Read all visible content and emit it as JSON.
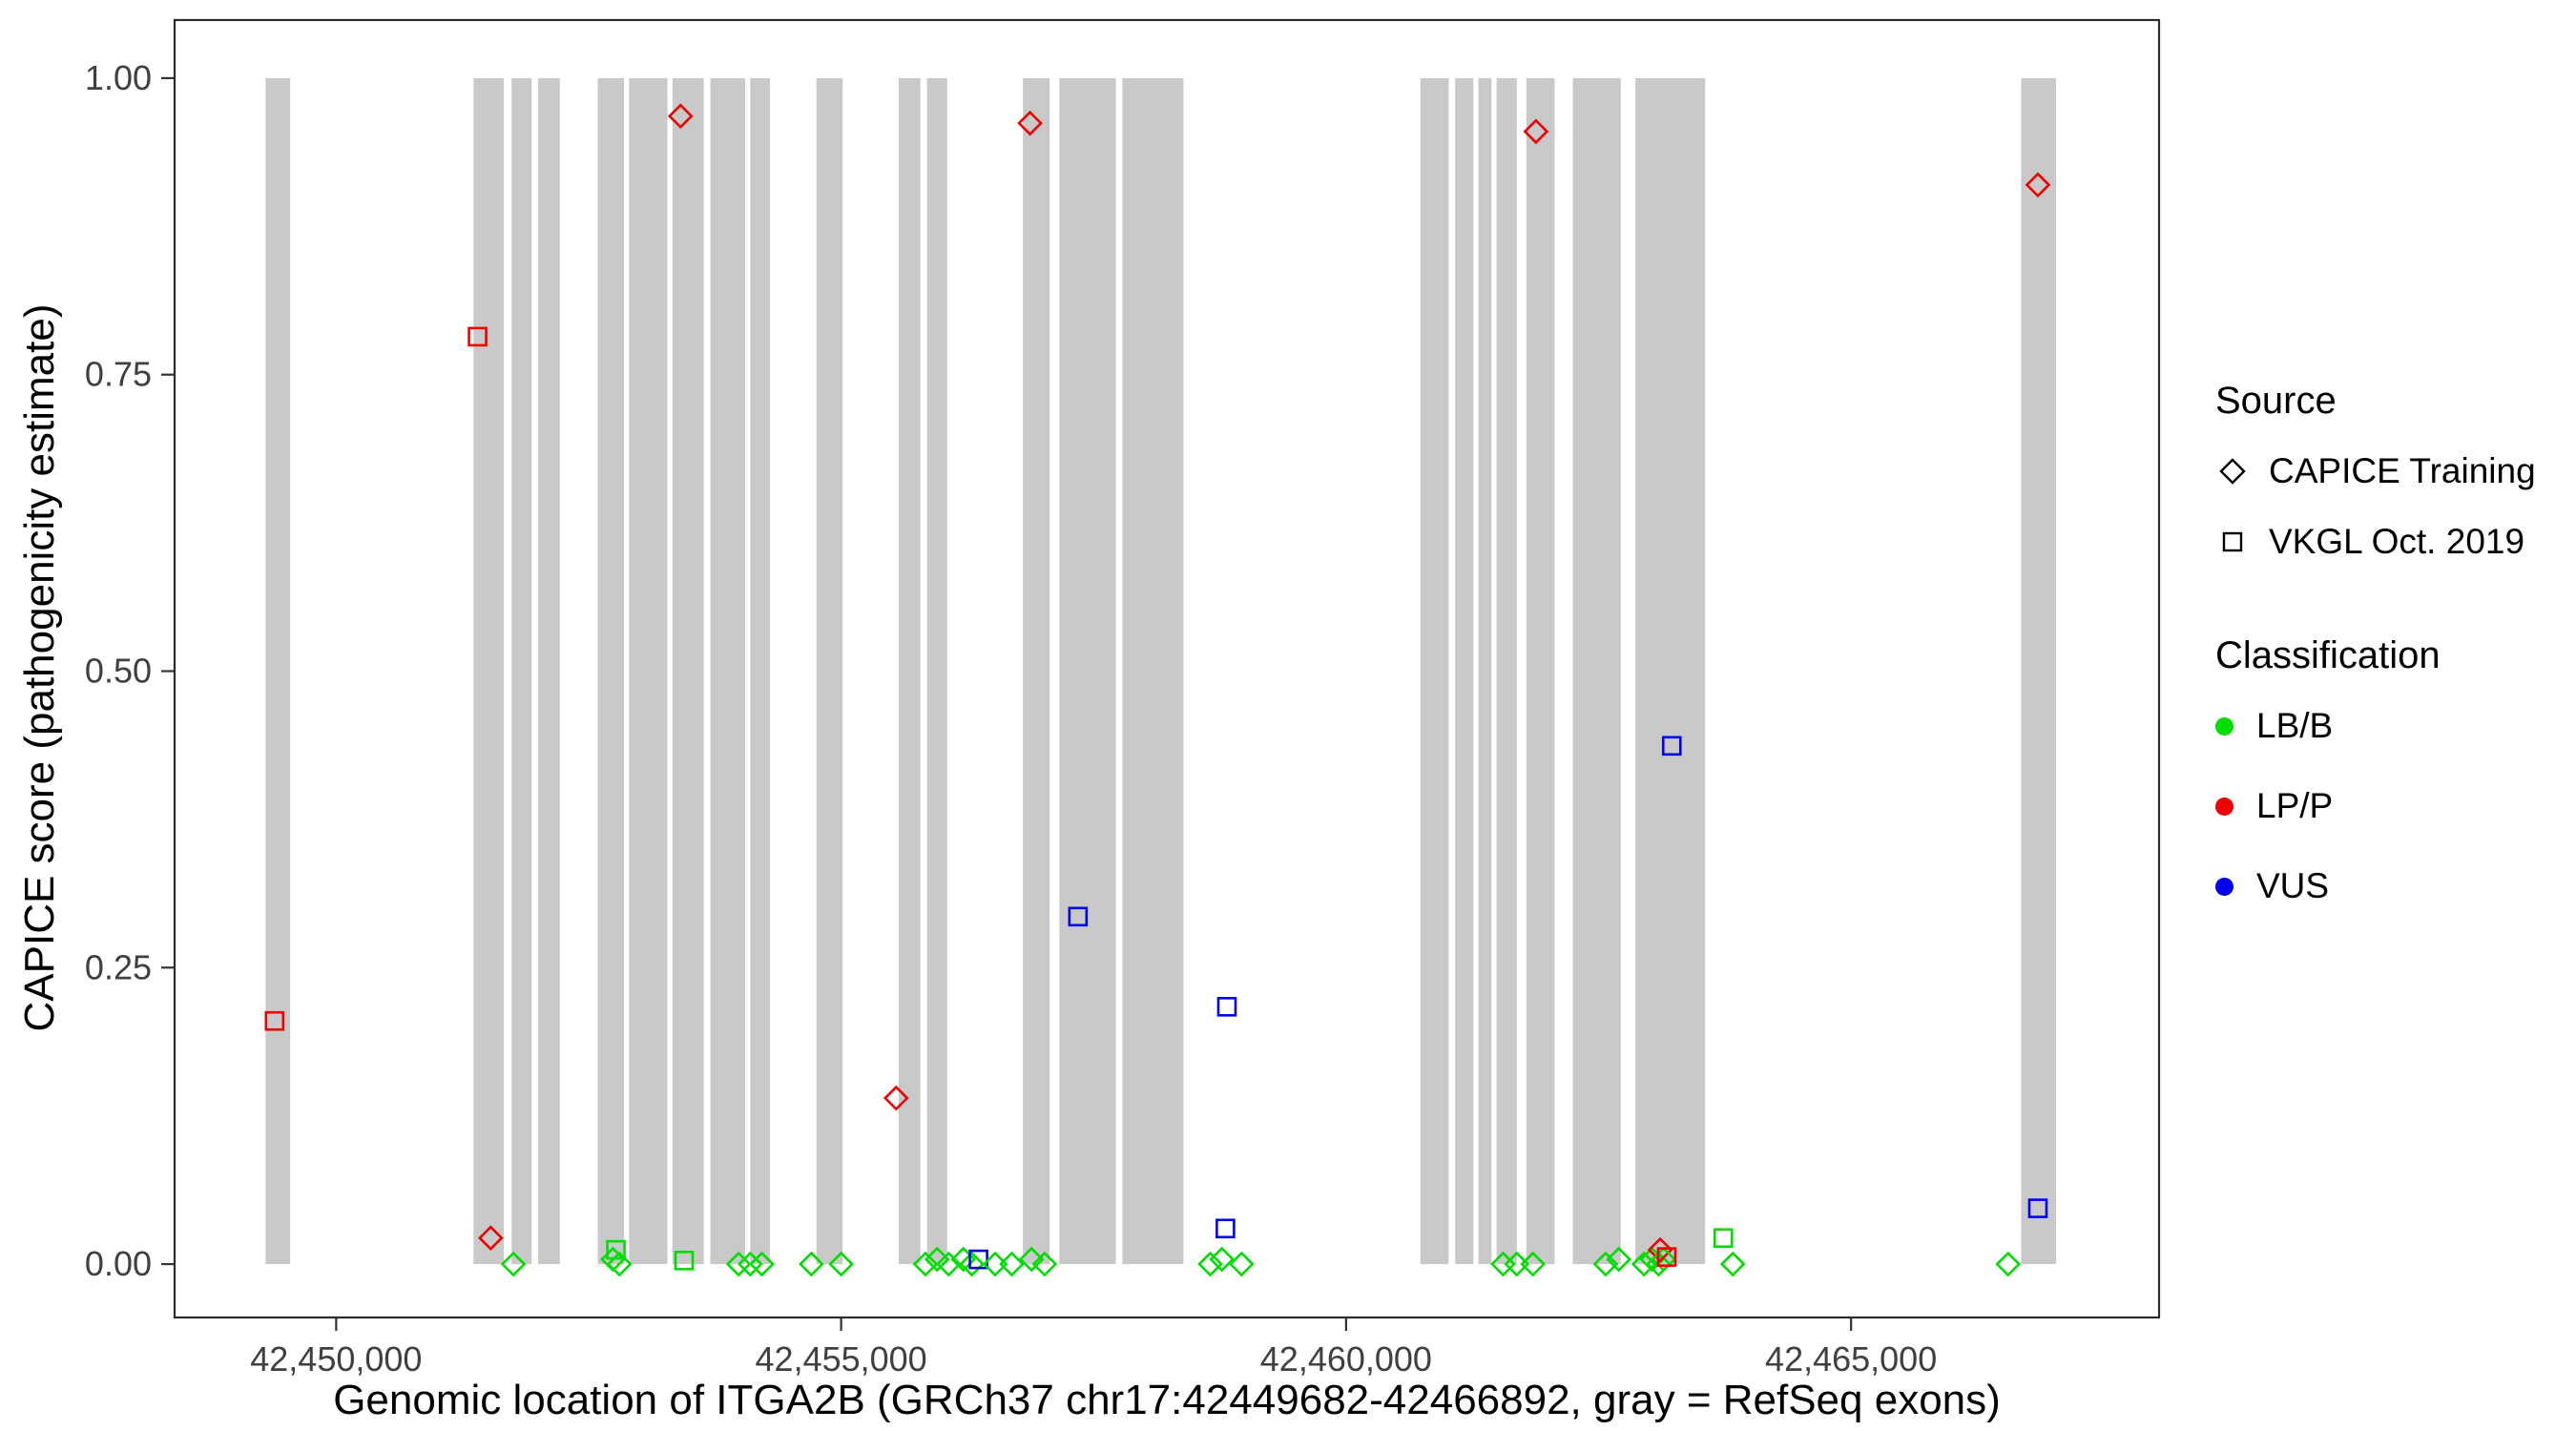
{
  "chart_data": {
    "type": "scatter",
    "title": "",
    "xlabel": "Genomic location of ITGA2B (GRCh37 chr17:42449682-42466892, gray = RefSeq exons)",
    "ylabel": "CAPICE score (pathogenicity estimate)",
    "xlim": [
      42448400,
      42468050
    ],
    "ylim": [
      -0.045,
      1.049
    ],
    "grid": "off",
    "legend_position": "right",
    "exon_color": "#c9c9c9",
    "panel_border_color": "#2b2b2b",
    "tick_label_color": "#404040",
    "x_ticks": [
      {
        "value": 42450000,
        "label": "42,450,000"
      },
      {
        "value": 42455000,
        "label": "42,455,000"
      },
      {
        "value": 42460000,
        "label": "42,460,000"
      },
      {
        "value": 42465000,
        "label": "42,465,000"
      }
    ],
    "y_ticks": [
      {
        "value": 0.0,
        "label": "0.00"
      },
      {
        "value": 0.25,
        "label": "0.25"
      },
      {
        "value": 0.5,
        "label": "0.50"
      },
      {
        "value": 0.75,
        "label": "0.75"
      },
      {
        "value": 1.0,
        "label": "1.00"
      }
    ],
    "class_colors": {
      "LB/B": "#00dd00",
      "LP/P": "#ee0000",
      "VUS": "#0000ee"
    },
    "exons": [
      [
        42449300,
        42449545
      ],
      [
        42451360,
        42451660
      ],
      [
        42451737,
        42451935
      ],
      [
        42452000,
        42452215
      ],
      [
        42452590,
        42452850
      ],
      [
        42452900,
        42453280
      ],
      [
        42453330,
        42453640
      ],
      [
        42453705,
        42454050
      ],
      [
        42454100,
        42454295
      ],
      [
        42454755,
        42455015
      ],
      [
        42455570,
        42455785
      ],
      [
        42455850,
        42456050
      ],
      [
        42456800,
        42457065
      ],
      [
        42457160,
        42457720
      ],
      [
        42457785,
        42458390
      ],
      [
        42460735,
        42461015
      ],
      [
        42461080,
        42461260
      ],
      [
        42461310,
        42461440
      ],
      [
        42461490,
        42461690
      ],
      [
        42461785,
        42462065
      ],
      [
        42462245,
        42462720
      ],
      [
        42462865,
        42463555
      ],
      [
        42466685,
        42467030
      ]
    ],
    "points": [
      {
        "x": 42449390,
        "y": 0.205,
        "source": "VKGL Oct. 2019",
        "cls": "LP/P"
      },
      {
        "x": 42451400,
        "y": 0.782,
        "source": "VKGL Oct. 2019",
        "cls": "LP/P"
      },
      {
        "x": 42451530,
        "y": 0.022,
        "source": "CAPICE Training",
        "cls": "LP/P"
      },
      {
        "x": 42451755,
        "y": 0.0,
        "source": "CAPICE Training",
        "cls": "LB/B"
      },
      {
        "x": 42452740,
        "y": 0.004,
        "source": "CAPICE Training",
        "cls": "LB/B"
      },
      {
        "x": 42452770,
        "y": 0.012,
        "source": "VKGL Oct. 2019",
        "cls": "LB/B"
      },
      {
        "x": 42452805,
        "y": 0.0,
        "source": "CAPICE Training",
        "cls": "LB/B"
      },
      {
        "x": 42453410,
        "y": 0.968,
        "source": "CAPICE Training",
        "cls": "LP/P"
      },
      {
        "x": 42453445,
        "y": 0.003,
        "source": "VKGL Oct. 2019",
        "cls": "LB/B"
      },
      {
        "x": 42453985,
        "y": 0.0,
        "source": "CAPICE Training",
        "cls": "LB/B"
      },
      {
        "x": 42454100,
        "y": 0.0,
        "source": "CAPICE Training",
        "cls": "LB/B"
      },
      {
        "x": 42454215,
        "y": 0.0,
        "source": "CAPICE Training",
        "cls": "LB/B"
      },
      {
        "x": 42454705,
        "y": 0.0,
        "source": "CAPICE Training",
        "cls": "LB/B"
      },
      {
        "x": 42455000,
        "y": 0.0,
        "source": "CAPICE Training",
        "cls": "LB/B"
      },
      {
        "x": 42455545,
        "y": 0.14,
        "source": "CAPICE Training",
        "cls": "LP/P"
      },
      {
        "x": 42455835,
        "y": 0.0,
        "source": "CAPICE Training",
        "cls": "LB/B"
      },
      {
        "x": 42455950,
        "y": 0.004,
        "source": "CAPICE Training",
        "cls": "LB/B"
      },
      {
        "x": 42456065,
        "y": 0.0,
        "source": "CAPICE Training",
        "cls": "LB/B"
      },
      {
        "x": 42456210,
        "y": 0.004,
        "source": "CAPICE Training",
        "cls": "LB/B"
      },
      {
        "x": 42456295,
        "y": 0.0,
        "source": "CAPICE Training",
        "cls": "LB/B"
      },
      {
        "x": 42456360,
        "y": 0.004,
        "source": "VKGL Oct. 2019",
        "cls": "VUS"
      },
      {
        "x": 42456525,
        "y": 0.0,
        "source": "CAPICE Training",
        "cls": "LB/B"
      },
      {
        "x": 42456690,
        "y": 0.0,
        "source": "CAPICE Training",
        "cls": "LB/B"
      },
      {
        "x": 42456870,
        "y": 0.962,
        "source": "CAPICE Training",
        "cls": "LP/P"
      },
      {
        "x": 42456885,
        "y": 0.004,
        "source": "CAPICE Training",
        "cls": "LB/B"
      },
      {
        "x": 42457015,
        "y": 0.0,
        "source": "CAPICE Training",
        "cls": "LB/B"
      },
      {
        "x": 42457345,
        "y": 0.293,
        "source": "VKGL Oct. 2019",
        "cls": "VUS"
      },
      {
        "x": 42458655,
        "y": 0.0,
        "source": "CAPICE Training",
        "cls": "LB/B"
      },
      {
        "x": 42458770,
        "y": 0.004,
        "source": "CAPICE Training",
        "cls": "LB/B"
      },
      {
        "x": 42458805,
        "y": 0.03,
        "source": "VKGL Oct. 2019",
        "cls": "VUS"
      },
      {
        "x": 42458820,
        "y": 0.217,
        "source": "VKGL Oct. 2019",
        "cls": "VUS"
      },
      {
        "x": 42458965,
        "y": 0.0,
        "source": "CAPICE Training",
        "cls": "LB/B"
      },
      {
        "x": 42461555,
        "y": 0.0,
        "source": "CAPICE Training",
        "cls": "LB/B"
      },
      {
        "x": 42461690,
        "y": 0.0,
        "source": "CAPICE Training",
        "cls": "LB/B"
      },
      {
        "x": 42461850,
        "y": 0.0,
        "source": "CAPICE Training",
        "cls": "LB/B"
      },
      {
        "x": 42461880,
        "y": 0.955,
        "source": "CAPICE Training",
        "cls": "LP/P"
      },
      {
        "x": 42462570,
        "y": 0.0,
        "source": "CAPICE Training",
        "cls": "LB/B"
      },
      {
        "x": 42462700,
        "y": 0.004,
        "source": "CAPICE Training",
        "cls": "LB/B"
      },
      {
        "x": 42462950,
        "y": 0.0,
        "source": "CAPICE Training",
        "cls": "LB/B"
      },
      {
        "x": 42463030,
        "y": 0.004,
        "source": "CAPICE Training",
        "cls": "LB/B"
      },
      {
        "x": 42463095,
        "y": 0.0,
        "source": "CAPICE Training",
        "cls": "LB/B"
      },
      {
        "x": 42463110,
        "y": 0.012,
        "source": "CAPICE Training",
        "cls": "LP/P"
      },
      {
        "x": 42463145,
        "y": 0.004,
        "source": "CAPICE Training",
        "cls": "LB/B"
      },
      {
        "x": 42463175,
        "y": 0.006,
        "source": "VKGL Oct. 2019",
        "cls": "LP/P"
      },
      {
        "x": 42463225,
        "y": 0.437,
        "source": "VKGL Oct. 2019",
        "cls": "VUS"
      },
      {
        "x": 42463735,
        "y": 0.022,
        "source": "VKGL Oct. 2019",
        "cls": "LB/B"
      },
      {
        "x": 42463830,
        "y": 0.0,
        "source": "CAPICE Training",
        "cls": "LB/B"
      },
      {
        "x": 42466555,
        "y": 0.0,
        "source": "CAPICE Training",
        "cls": "LB/B"
      },
      {
        "x": 42466850,
        "y": 0.91,
        "source": "CAPICE Training",
        "cls": "LP/P"
      },
      {
        "x": 42466850,
        "y": 0.047,
        "source": "VKGL Oct. 2019",
        "cls": "VUS"
      }
    ]
  },
  "legend": {
    "source": {
      "title": "Source",
      "items": [
        {
          "label": "CAPICE Training",
          "marker": "diamond"
        },
        {
          "label": "VKGL Oct. 2019",
          "marker": "square"
        }
      ]
    },
    "classification": {
      "title": "Classification",
      "items": [
        {
          "label": "LB/B",
          "color": "#00dd00"
        },
        {
          "label": "LP/P",
          "color": "#ee0000"
        },
        {
          "label": "VUS",
          "color": "#0000ee"
        }
      ]
    }
  }
}
